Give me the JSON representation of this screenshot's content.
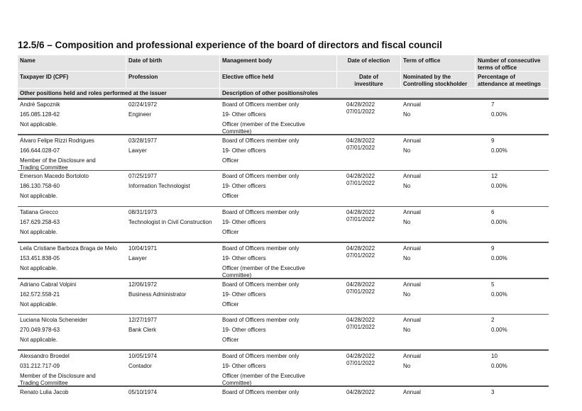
{
  "title": "12.5/6 – Composition and professional experience of the board of directors and fiscal council",
  "headers": {
    "name": "Name",
    "dob": "Date of birth",
    "management_body": "Management body",
    "election_date": "Date of election",
    "term": "Term of office",
    "consecutive_terms": "Number of consecutive terms of office",
    "cpf": "Taxpayer ID (CPF)",
    "profession": "Profession",
    "elective_office": "Elective office held",
    "investiture_date": "Date of investiture",
    "nominated": "Nominated by the Controlling stockholder",
    "attendance": "Percentage of attendance at meetings",
    "other_positions": "Other positions held and roles performed at the issuer",
    "description": "Description of other positions/roles"
  },
  "records": [
    {
      "name": "André Sapoznik",
      "dob": "02/24/1972",
      "body": "Board of Officers member only",
      "election": "04/28/2022",
      "term": "Annual",
      "terms": "7",
      "cpf": "165.085.128-62",
      "profession": "Engineer",
      "office": "19- Other officers",
      "investiture": "07/01/2022",
      "nominated": "No",
      "attendance": "0.00%",
      "other": "Not applicable.",
      "description": "Officer (member of the Executive Committee)"
    },
    {
      "name": "Álvaro Felipe Rizzi Rodrigues",
      "dob": "03/28/1977",
      "body": "Board of Officers member only",
      "election": "04/28/2022",
      "term": "Annual",
      "terms": "9",
      "cpf": "166.644.028-07",
      "profession": "Lawyer",
      "office": "19- Other officers",
      "investiture": "07/01/2022",
      "nominated": "No",
      "attendance": "0.00%",
      "other": "Member of the Disclosure and Trading Committee",
      "description": "Officer"
    },
    {
      "name": "Emerson Macedo Bortoloto",
      "dob": "07/25/1977",
      "body": "Board of Officers member only",
      "election": "04/28/2022",
      "term": "Annual",
      "terms": "12",
      "cpf": "186.130.758-60",
      "profession": "Information Technologist",
      "office": "19- Other officers",
      "investiture": "07/01/2022",
      "nominated": "No",
      "attendance": "0.00%",
      "other": "Not applicable.",
      "description": "Officer"
    },
    {
      "name": "Tatiana Grecco",
      "dob": "08/31/1973",
      "body": "Board of Officers member only",
      "election": "04/28/2022",
      "term": "Annual",
      "terms": "6",
      "cpf": "167.629.258-63",
      "profession": "Technologist in Civil Construction",
      "office": "19- Other officers",
      "investiture": "07/01/2022",
      "nominated": "No",
      "attendance": "0.00%",
      "other": "Not applicable.",
      "description": "Officer"
    },
    {
      "name": "Leila Cristiane Barboza Braga de Melo",
      "dob": "10/04/1971",
      "body": "Board of Officers member only",
      "election": "04/28/2022",
      "term": "Annual",
      "terms": "9",
      "cpf": "153.451.838-05",
      "profession": "Lawyer",
      "office": "19- Other officers",
      "investiture": "07/01/2022",
      "nominated": "No",
      "attendance": "0.00%",
      "other": "Not applicable.",
      "description": "Officer (member of the Executive Committee)"
    },
    {
      "name": "Adriano Cabral Volpini",
      "dob": "12/06/1972",
      "body": "Board of Officers member only",
      "election": "04/28/2022",
      "term": "Annual",
      "terms": "5",
      "cpf": "162.572.558-21",
      "profession": "Business Administrator",
      "office": "19- Other officers",
      "investiture": "07/01/2022",
      "nominated": "No",
      "attendance": "0.00%",
      "other": "Not applicable.",
      "description": "Officer"
    },
    {
      "name": "Luciana Nicola Scheneider",
      "dob": "12/27/1977",
      "body": "Board of Officers member only",
      "election": "04/28/2022",
      "term": "Annual",
      "terms": "2",
      "cpf": "270.049.978-63",
      "profession": "Bank Clerk",
      "office": "19- Other officers",
      "investiture": "07/01/2022",
      "nominated": "No",
      "attendance": "0.00%",
      "other": "Not applicable.",
      "description": "Officer"
    },
    {
      "name": "Alexsandro Broedel",
      "dob": "10/05/1974",
      "body": "Board of Officers member only",
      "election": "04/28/2022",
      "term": "Annual",
      "terms": "10",
      "cpf": "031.212.717-09",
      "profession": "Contador",
      "office": "19- Other officers",
      "investiture": "07/01/2022",
      "nominated": "No",
      "attendance": "0.00%",
      "other": "Member of the Disclosure and Trading Committee",
      "description": "Officer (member of the Executive Committee)"
    },
    {
      "name": "Renato Lulia Jacob",
      "dob": "05/10/1974",
      "body": "Board of Officers member only",
      "election": "04/28/2022",
      "term": "Annual",
      "terms": "3"
    }
  ]
}
